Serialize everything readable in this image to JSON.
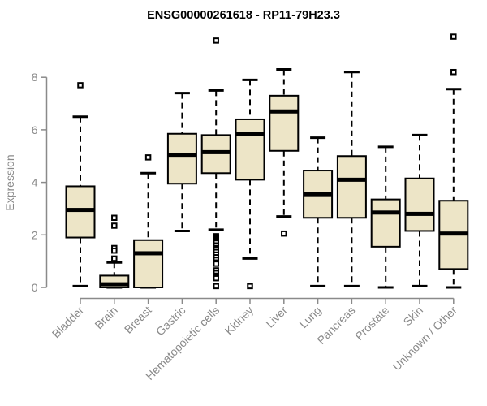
{
  "title": "ENSG00000261618 - RP11-79H23.3",
  "chart_data": {
    "type": "boxplot",
    "title": "ENSG00000261618 - RP11-79H23.3",
    "xlabel": "",
    "ylabel": "Expression",
    "ylim": [
      0,
      9.8
    ],
    "yticks": [
      0,
      2,
      4,
      6,
      8
    ],
    "grid": false,
    "legend": "none",
    "categories": [
      "Bladder",
      "Brain",
      "Breast",
      "Gastric",
      "Hematopoietic cells",
      "Kidney",
      "Liver",
      "Lung",
      "Pancreas",
      "Prostate",
      "Skin",
      "Unknown / Other"
    ],
    "boxes": [
      {
        "category": "Bladder",
        "whisker_low": 0.05,
        "q1": 1.9,
        "median": 2.95,
        "q3": 3.85,
        "whisker_high": 6.5,
        "outliers": [
          7.7
        ]
      },
      {
        "category": "Brain",
        "whisker_low": 0.0,
        "q1": 0.0,
        "median": 0.12,
        "q3": 0.45,
        "whisker_high": 0.95,
        "outliers": [
          2.65,
          2.35,
          1.5,
          1.4,
          1.1
        ]
      },
      {
        "category": "Breast",
        "whisker_low": 0.0,
        "q1": 0.0,
        "median": 1.3,
        "q3": 1.8,
        "whisker_high": 4.35,
        "outliers": [
          4.95
        ]
      },
      {
        "category": "Gastric",
        "whisker_low": 2.15,
        "q1": 3.95,
        "median": 5.05,
        "q3": 5.85,
        "whisker_high": 7.4,
        "outliers": []
      },
      {
        "category": "Hematopoietic cells",
        "whisker_low": 2.2,
        "q1": 4.35,
        "median": 5.15,
        "q3": 5.8,
        "whisker_high": 7.5,
        "outliers": [
          9.4,
          1.95,
          1.9,
          1.85,
          1.8,
          1.75,
          1.7,
          1.6,
          1.5,
          1.45,
          1.35,
          1.25,
          1.15,
          1.05,
          0.95,
          0.9,
          0.65,
          0.55,
          0.45,
          0.4,
          0.35,
          0.05
        ]
      },
      {
        "category": "Kidney",
        "whisker_low": 1.1,
        "q1": 4.1,
        "median": 5.85,
        "q3": 6.4,
        "whisker_high": 7.9,
        "outliers": [
          0.05
        ]
      },
      {
        "category": "Liver",
        "whisker_low": 2.7,
        "q1": 5.2,
        "median": 6.7,
        "q3": 7.3,
        "whisker_high": 8.3,
        "outliers": [
          2.05
        ]
      },
      {
        "category": "Lung",
        "whisker_low": 0.05,
        "q1": 2.65,
        "median": 3.55,
        "q3": 4.45,
        "whisker_high": 5.7,
        "outliers": []
      },
      {
        "category": "Pancreas",
        "whisker_low": 0.05,
        "q1": 2.65,
        "median": 4.1,
        "q3": 5.0,
        "whisker_high": 8.2,
        "outliers": []
      },
      {
        "category": "Prostate",
        "whisker_low": 0.0,
        "q1": 1.55,
        "median": 2.85,
        "q3": 3.35,
        "whisker_high": 5.35,
        "outliers": []
      },
      {
        "category": "Skin",
        "whisker_low": 0.05,
        "q1": 2.15,
        "median": 2.8,
        "q3": 4.15,
        "whisker_high": 5.8,
        "outliers": []
      },
      {
        "category": "Unknown / Other",
        "whisker_low": 0.0,
        "q1": 0.7,
        "median": 2.05,
        "q3": 3.3,
        "whisker_high": 7.55,
        "outliers": [
          9.55,
          8.2
        ]
      }
    ]
  },
  "colors": {
    "box_fill": "#EDE5C7",
    "box_stroke": "#000000",
    "median": "#000000",
    "whisker": "#000000",
    "outlier_stroke": "#000000",
    "outlier_fill": "#FFFFFF",
    "axis": "#8A8A8A",
    "tick_label": "#8A8A8A",
    "axis_label": "#8A8A8A",
    "title_text": "#000000",
    "background": "#FFFFFF"
  }
}
